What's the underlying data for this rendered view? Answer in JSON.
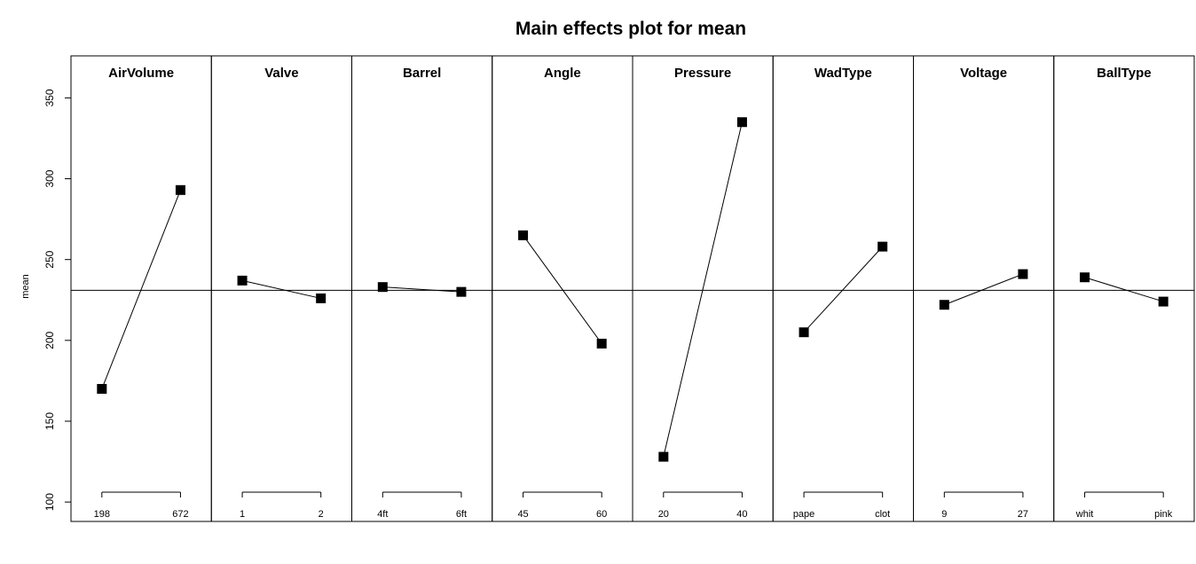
{
  "chart_data": {
    "type": "line",
    "title": "Main effects plot for mean",
    "ylabel": "mean",
    "ylim": [
      88,
      376
    ],
    "yticks": [
      100,
      150,
      200,
      250,
      300,
      350
    ],
    "grand_mean": 231,
    "line_color": "#000000",
    "marker_color": "#000000",
    "panels": [
      {
        "factor": "AirVolume",
        "levels": [
          "198",
          "672"
        ],
        "means": [
          170,
          293
        ]
      },
      {
        "factor": "Valve",
        "levels": [
          "1",
          "2"
        ],
        "means": [
          237,
          226
        ]
      },
      {
        "factor": "Barrel",
        "levels": [
          "4ft",
          "6ft"
        ],
        "means": [
          233,
          230
        ]
      },
      {
        "factor": "Angle",
        "levels": [
          "45",
          "60"
        ],
        "means": [
          265,
          198
        ]
      },
      {
        "factor": "Pressure",
        "levels": [
          "20",
          "40"
        ],
        "means": [
          128,
          335
        ]
      },
      {
        "factor": "WadType",
        "levels": [
          "pape",
          "clot"
        ],
        "means": [
          205,
          258
        ]
      },
      {
        "factor": "Voltage",
        "levels": [
          "9",
          "27"
        ],
        "means": [
          222,
          241
        ]
      },
      {
        "factor": "BallType",
        "levels": [
          "whit",
          "pink"
        ],
        "means": [
          239,
          224
        ]
      }
    ]
  }
}
